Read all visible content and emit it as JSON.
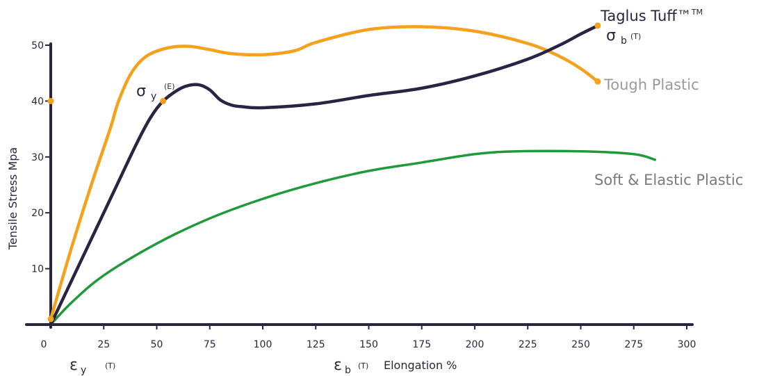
{
  "chart_data": {
    "type": "line",
    "xlabel": "Elongation %",
    "ylabel": "Tensile Stress Mpa",
    "xlim": [
      0,
      300
    ],
    "ylim": [
      0,
      50
    ],
    "x_ticks": [
      "0",
      "25",
      "50",
      "75",
      "100",
      "125",
      "150",
      "175",
      "200",
      "225",
      "250",
      "275",
      "300"
    ],
    "y_ticks": [
      "10",
      "20",
      "30",
      "40",
      "50"
    ],
    "grid": false,
    "series": [
      {
        "name": "Taglus Tuff™",
        "color": "#2a2342",
        "points": [
          [
            0,
            0
          ],
          [
            10,
            8
          ],
          [
            20,
            16
          ],
          [
            30,
            24
          ],
          [
            40,
            32
          ],
          [
            47,
            37
          ],
          [
            53,
            40
          ],
          [
            60,
            42
          ],
          [
            65,
            42.8
          ],
          [
            70,
            42.9
          ],
          [
            75,
            42
          ],
          [
            80,
            40.2
          ],
          [
            85,
            39.3
          ],
          [
            90,
            39
          ],
          [
            100,
            38.8
          ],
          [
            125,
            39.5
          ],
          [
            150,
            41
          ],
          [
            175,
            42.3
          ],
          [
            200,
            44.5
          ],
          [
            225,
            47.5
          ],
          [
            240,
            50
          ],
          [
            250,
            52
          ],
          [
            258,
            53.5
          ]
        ]
      },
      {
        "name": "Tough Plastic",
        "color": "#f4a21b",
        "points": [
          [
            0,
            1
          ],
          [
            10,
            14
          ],
          [
            20,
            26
          ],
          [
            28,
            35
          ],
          [
            32,
            40
          ],
          [
            38,
            45
          ],
          [
            45,
            48
          ],
          [
            55,
            49.5
          ],
          [
            65,
            49.8
          ],
          [
            75,
            49.2
          ],
          [
            85,
            48.5
          ],
          [
            100,
            48.3
          ],
          [
            115,
            49
          ],
          [
            125,
            50.5
          ],
          [
            150,
            52.8
          ],
          [
            175,
            53.3
          ],
          [
            200,
            52.5
          ],
          [
            225,
            50.3
          ],
          [
            240,
            48
          ],
          [
            250,
            45.8
          ],
          [
            258,
            43.5
          ]
        ]
      },
      {
        "name": "Soft & Elastic Plastic",
        "color": "#1f9a3a",
        "points": [
          [
            0,
            0
          ],
          [
            10,
            4
          ],
          [
            25,
            8.8
          ],
          [
            50,
            14.5
          ],
          [
            75,
            19
          ],
          [
            100,
            22.5
          ],
          [
            125,
            25.3
          ],
          [
            150,
            27.5
          ],
          [
            175,
            29
          ],
          [
            200,
            30.5
          ],
          [
            220,
            31
          ],
          [
            250,
            31
          ],
          [
            275,
            30.5
          ],
          [
            285,
            29.5
          ]
        ]
      }
    ],
    "markers": [
      {
        "x": 0,
        "y": 40,
        "color": "#f4a21b"
      },
      {
        "x": 53,
        "y": 40,
        "color": "#f4a21b"
      },
      {
        "x": 258,
        "y": 53.5,
        "color": "#f4a21b"
      },
      {
        "x": 258,
        "y": 43.5,
        "color": "#f4a21b"
      },
      {
        "x": 0,
        "y": 1,
        "color": "#f4a21b"
      }
    ],
    "annotations": {
      "sigma_y": {
        "symbol": "σ",
        "sub": "y",
        "tag": "(E)"
      },
      "sigma_b": {
        "symbol": "σ",
        "sub": "b",
        "tag": "(T)"
      },
      "eps_y": {
        "symbol": "ε",
        "sub": "y",
        "tag": "(T)"
      },
      "eps_b": {
        "symbol": "ε",
        "sub": "b",
        "tag": "(T)"
      }
    },
    "trademark": "TM"
  }
}
